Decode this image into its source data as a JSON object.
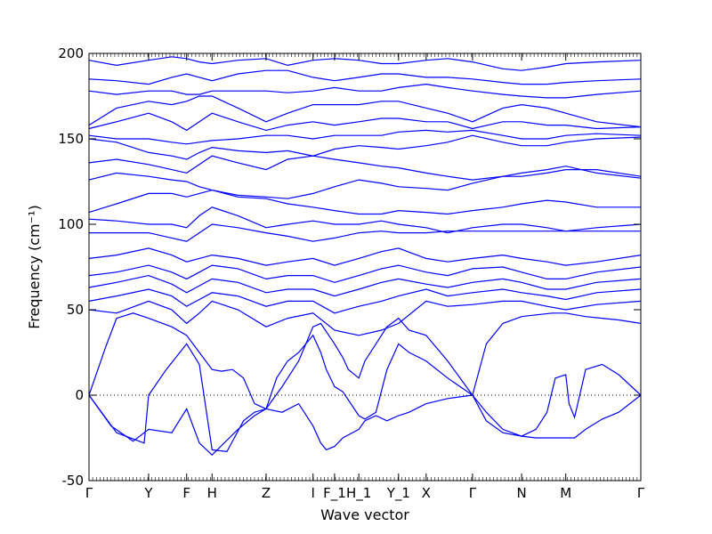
{
  "chart_data": {
    "type": "line",
    "title": "",
    "xlabel": "Wave vector",
    "ylabel": "Frequency (cm⁻¹)",
    "ylim": [
      -50,
      200
    ],
    "yticks": [
      -50,
      0,
      50,
      100,
      150,
      200
    ],
    "grid": false,
    "line_color": "#0000ff",
    "path_points": [
      "Γ",
      "Y",
      "F",
      "H",
      "Z",
      "I",
      "F_1",
      "H_1",
      "Y_1",
      "X",
      "Γ",
      "N",
      "M",
      "Γ"
    ],
    "path_positions": [
      0,
      0.108,
      0.177,
      0.223,
      0.321,
      0.406,
      0.445,
      0.489,
      0.561,
      0.611,
      0.695,
      0.784,
      0.864,
      1.0
    ],
    "reference_line": 0,
    "series": [
      {
        "x": [
          0,
          0.04,
          0.08,
          0.108,
          0.15,
          0.177,
          0.2,
          0.223,
          0.27,
          0.3,
          0.321
        ],
        "y": [
          0,
          -18,
          -27,
          -20,
          -22,
          -8,
          -28,
          -35,
          -20,
          -12,
          -8
        ]
      },
      {
        "x": [
          0,
          0.05,
          0.1,
          0.108,
          0.14,
          0.177,
          0.2,
          0.223,
          0.25,
          0.28,
          0.3,
          0.321
        ],
        "y": [
          0,
          -22,
          -28,
          0,
          15,
          30,
          18,
          -32,
          -33,
          -15,
          -10,
          -8
        ]
      },
      {
        "x": [
          0,
          0.03,
          0.05,
          0.08,
          0.108,
          0.15,
          0.177,
          0.2,
          0.223,
          0.24,
          0.26,
          0.28,
          0.3,
          0.321
        ],
        "y": [
          0,
          28,
          45,
          48,
          45,
          40,
          35,
          25,
          15,
          14,
          15,
          10,
          -5,
          -8
        ]
      },
      {
        "x": [
          0.321,
          0.35,
          0.38,
          0.406,
          0.42,
          0.43,
          0.445,
          0.46,
          0.489,
          0.5,
          0.52,
          0.54,
          0.561,
          0.58,
          0.611,
          0.65,
          0.695
        ],
        "y": [
          -8,
          -10,
          -5,
          -18,
          -28,
          -32,
          -30,
          -25,
          -20,
          -15,
          -12,
          -15,
          -12,
          -10,
          -5,
          -2,
          0
        ]
      },
      {
        "x": [
          0.321,
          0.34,
          0.36,
          0.38,
          0.406,
          0.42,
          0.43,
          0.445,
          0.46,
          0.489,
          0.5,
          0.52,
          0.54,
          0.561,
          0.58,
          0.611,
          0.65,
          0.695
        ],
        "y": [
          -8,
          10,
          20,
          25,
          35,
          25,
          15,
          5,
          2,
          -12,
          -14,
          -10,
          15,
          30,
          25,
          20,
          10,
          0
        ]
      },
      {
        "x": [
          0.321,
          0.35,
          0.38,
          0.406,
          0.42,
          0.445,
          0.46,
          0.47,
          0.489,
          0.5,
          0.52,
          0.54,
          0.561,
          0.58,
          0.611,
          0.65,
          0.695
        ],
        "y": [
          -8,
          5,
          20,
          40,
          42,
          30,
          22,
          15,
          10,
          20,
          30,
          40,
          45,
          38,
          35,
          20,
          0
        ]
      },
      {
        "x": [
          0.695,
          0.72,
          0.75,
          0.784,
          0.81,
          0.83,
          0.864,
          0.88,
          0.9,
          0.93,
          0.96,
          1.0
        ],
        "y": [
          0,
          -10,
          -20,
          -24,
          -25,
          -25,
          -25,
          -25,
          -20,
          -14,
          -10,
          0
        ]
      },
      {
        "x": [
          0.695,
          0.72,
          0.75,
          0.784,
          0.81,
          0.83,
          0.845,
          0.864,
          0.87,
          0.88,
          0.9,
          0.93,
          0.96,
          1.0
        ],
        "y": [
          0,
          -15,
          -22,
          -24,
          -20,
          -10,
          10,
          12,
          -5,
          -13,
          15,
          18,
          12,
          0
        ]
      },
      {
        "x": [
          0.695,
          0.72,
          0.75,
          0.784,
          0.81,
          0.84,
          0.864,
          0.9,
          0.93,
          0.96,
          1.0
        ],
        "y": [
          0,
          30,
          42,
          46,
          47,
          48,
          48,
          46,
          45,
          44,
          42
        ]
      },
      {
        "x": [
          0,
          0.05,
          0.108,
          0.15,
          0.177,
          0.2,
          0.223,
          0.27,
          0.321,
          0.36,
          0.406,
          0.445,
          0.489,
          0.53,
          0.561,
          0.611,
          0.65,
          0.695,
          0.75,
          0.784,
          0.83,
          0.864,
          0.92,
          1.0
        ],
        "y": [
          50,
          48,
          55,
          50,
          42,
          48,
          55,
          50,
          40,
          45,
          48,
          38,
          35,
          38,
          42,
          55,
          52,
          53,
          55,
          55,
          52,
          50,
          53,
          55
        ]
      },
      {
        "x": [
          0,
          0.05,
          0.108,
          0.15,
          0.177,
          0.2,
          0.223,
          0.27,
          0.321,
          0.36,
          0.406,
          0.445,
          0.489,
          0.53,
          0.561,
          0.611,
          0.65,
          0.695,
          0.75,
          0.784,
          0.83,
          0.864,
          0.92,
          1.0
        ],
        "y": [
          55,
          58,
          62,
          58,
          52,
          56,
          60,
          58,
          52,
          55,
          55,
          48,
          52,
          55,
          58,
          62,
          58,
          60,
          62,
          60,
          58,
          56,
          60,
          62
        ]
      },
      {
        "x": [
          0,
          0.05,
          0.108,
          0.15,
          0.177,
          0.2,
          0.223,
          0.27,
          0.321,
          0.36,
          0.406,
          0.445,
          0.489,
          0.53,
          0.561,
          0.611,
          0.65,
          0.695,
          0.75,
          0.784,
          0.83,
          0.864,
          0.92,
          1.0
        ],
        "y": [
          63,
          66,
          70,
          65,
          60,
          64,
          68,
          66,
          60,
          62,
          62,
          58,
          62,
          66,
          68,
          65,
          63,
          66,
          68,
          66,
          62,
          62,
          66,
          68
        ]
      },
      {
        "x": [
          0,
          0.05,
          0.108,
          0.15,
          0.177,
          0.2,
          0.223,
          0.27,
          0.321,
          0.36,
          0.406,
          0.445,
          0.489,
          0.53,
          0.561,
          0.611,
          0.65,
          0.695,
          0.75,
          0.784,
          0.83,
          0.864,
          0.92,
          1.0
        ],
        "y": [
          70,
          72,
          76,
          72,
          68,
          72,
          76,
          74,
          68,
          70,
          70,
          66,
          70,
          74,
          76,
          72,
          70,
          74,
          75,
          72,
          68,
          68,
          72,
          75
        ]
      },
      {
        "x": [
          0,
          0.05,
          0.108,
          0.15,
          0.177,
          0.2,
          0.223,
          0.27,
          0.321,
          0.36,
          0.406,
          0.445,
          0.489,
          0.53,
          0.561,
          0.611,
          0.65,
          0.695,
          0.75,
          0.784,
          0.83,
          0.864,
          0.92,
          1.0
        ],
        "y": [
          80,
          82,
          86,
          82,
          78,
          80,
          82,
          80,
          76,
          78,
          80,
          76,
          80,
          84,
          86,
          80,
          78,
          80,
          82,
          80,
          78,
          76,
          78,
          82
        ]
      },
      {
        "x": [
          0,
          0.05,
          0.108,
          0.15,
          0.177,
          0.2,
          0.223,
          0.27,
          0.321,
          0.36,
          0.406,
          0.445,
          0.489,
          0.53,
          0.561,
          0.611,
          0.65,
          0.695,
          0.75,
          0.784,
          0.83,
          0.864,
          0.92,
          1.0
        ],
        "y": [
          95,
          95,
          95,
          92,
          90,
          95,
          100,
          98,
          95,
          93,
          90,
          92,
          95,
          96,
          95,
          95,
          96,
          96,
          96,
          96,
          96,
          96,
          96,
          96
        ]
      },
      {
        "x": [
          0,
          0.05,
          0.108,
          0.15,
          0.177,
          0.2,
          0.223,
          0.27,
          0.321,
          0.36,
          0.406,
          0.445,
          0.489,
          0.53,
          0.561,
          0.611,
          0.65,
          0.695,
          0.75,
          0.784,
          0.83,
          0.864,
          0.92,
          1.0
        ],
        "y": [
          103,
          102,
          100,
          100,
          98,
          105,
          110,
          105,
          98,
          100,
          102,
          100,
          100,
          102,
          100,
          98,
          95,
          98,
          100,
          100,
          98,
          96,
          98,
          100
        ]
      },
      {
        "x": [
          0,
          0.05,
          0.108,
          0.15,
          0.177,
          0.2,
          0.223,
          0.27,
          0.321,
          0.36,
          0.406,
          0.445,
          0.489,
          0.53,
          0.561,
          0.611,
          0.65,
          0.695,
          0.75,
          0.784,
          0.83,
          0.864,
          0.92,
          1.0
        ],
        "y": [
          107,
          112,
          118,
          118,
          116,
          118,
          120,
          116,
          115,
          112,
          110,
          108,
          106,
          106,
          108,
          107,
          106,
          108,
          110,
          112,
          114,
          113,
          110,
          110
        ]
      },
      {
        "x": [
          0,
          0.05,
          0.108,
          0.15,
          0.177,
          0.2,
          0.223,
          0.27,
          0.321,
          0.36,
          0.406,
          0.445,
          0.489,
          0.53,
          0.561,
          0.611,
          0.65,
          0.695,
          0.75,
          0.784,
          0.83,
          0.864,
          0.92,
          1.0
        ],
        "y": [
          126,
          130,
          128,
          126,
          125,
          122,
          120,
          117,
          116,
          115,
          118,
          122,
          126,
          124,
          122,
          121,
          120,
          124,
          128,
          130,
          132,
          134,
          130,
          127
        ]
      },
      {
        "x": [
          0,
          0.05,
          0.108,
          0.15,
          0.177,
          0.2,
          0.223,
          0.27,
          0.321,
          0.36,
          0.406,
          0.445,
          0.489,
          0.53,
          0.561,
          0.611,
          0.65,
          0.695,
          0.75,
          0.784,
          0.83,
          0.864,
          0.92,
          1.0
        ],
        "y": [
          136,
          138,
          135,
          132,
          130,
          135,
          140,
          136,
          132,
          138,
          140,
          138,
          136,
          134,
          133,
          130,
          128,
          126,
          128,
          128,
          130,
          132,
          132,
          128
        ]
      },
      {
        "x": [
          0,
          0.05,
          0.108,
          0.15,
          0.177,
          0.2,
          0.223,
          0.27,
          0.321,
          0.36,
          0.406,
          0.445,
          0.489,
          0.53,
          0.561,
          0.611,
          0.65,
          0.695,
          0.75,
          0.784,
          0.83,
          0.864,
          0.92,
          1.0
        ],
        "y": [
          150,
          148,
          142,
          140,
          138,
          142,
          145,
          143,
          142,
          143,
          140,
          144,
          146,
          145,
          144,
          146,
          148,
          152,
          148,
          146,
          146,
          148,
          150,
          151
        ]
      },
      {
        "x": [
          0,
          0.05,
          0.108,
          0.15,
          0.177,
          0.2,
          0.223,
          0.27,
          0.321,
          0.36,
          0.406,
          0.445,
          0.489,
          0.53,
          0.561,
          0.611,
          0.65,
          0.695,
          0.75,
          0.784,
          0.83,
          0.864,
          0.92,
          1.0
        ],
        "y": [
          152,
          150,
          150,
          148,
          147,
          148,
          149,
          150,
          152,
          152,
          150,
          152,
          152,
          152,
          154,
          155,
          154,
          155,
          152,
          150,
          150,
          152,
          153,
          152
        ]
      },
      {
        "x": [
          0,
          0.05,
          0.108,
          0.15,
          0.177,
          0.2,
          0.223,
          0.27,
          0.321,
          0.36,
          0.406,
          0.445,
          0.489,
          0.53,
          0.561,
          0.611,
          0.65,
          0.695,
          0.75,
          0.784,
          0.83,
          0.864,
          0.92,
          1.0
        ],
        "y": [
          156,
          160,
          165,
          160,
          155,
          160,
          165,
          160,
          155,
          158,
          160,
          158,
          160,
          162,
          162,
          160,
          160,
          156,
          160,
          160,
          158,
          158,
          156,
          157
        ]
      },
      {
        "x": [
          0,
          0.05,
          0.108,
          0.15,
          0.177,
          0.2,
          0.223,
          0.27,
          0.321,
          0.36,
          0.406,
          0.445,
          0.489,
          0.53,
          0.561,
          0.611,
          0.65,
          0.695,
          0.75,
          0.784,
          0.83,
          0.864,
          0.92,
          1.0
        ],
        "y": [
          158,
          168,
          172,
          170,
          172,
          175,
          175,
          168,
          160,
          165,
          170,
          170,
          170,
          172,
          172,
          168,
          165,
          160,
          168,
          170,
          168,
          165,
          160,
          157
        ]
      },
      {
        "x": [
          0,
          0.05,
          0.108,
          0.15,
          0.177,
          0.2,
          0.223,
          0.27,
          0.321,
          0.36,
          0.406,
          0.445,
          0.489,
          0.53,
          0.561,
          0.611,
          0.65,
          0.695,
          0.75,
          0.784,
          0.83,
          0.864,
          0.92,
          1.0
        ],
        "y": [
          178,
          176,
          178,
          178,
          176,
          176,
          178,
          178,
          178,
          177,
          178,
          180,
          178,
          178,
          180,
          182,
          180,
          178,
          176,
          175,
          174,
          174,
          176,
          178
        ]
      },
      {
        "x": [
          0,
          0.05,
          0.108,
          0.15,
          0.177,
          0.2,
          0.223,
          0.27,
          0.321,
          0.36,
          0.406,
          0.445,
          0.489,
          0.53,
          0.561,
          0.611,
          0.65,
          0.695,
          0.75,
          0.784,
          0.83,
          0.864,
          0.92,
          1.0
        ],
        "y": [
          185,
          184,
          182,
          186,
          188,
          186,
          184,
          188,
          190,
          190,
          186,
          184,
          186,
          188,
          188,
          186,
          186,
          185,
          183,
          182,
          182,
          183,
          184,
          185
        ]
      },
      {
        "x": [
          0,
          0.05,
          0.108,
          0.15,
          0.177,
          0.2,
          0.223,
          0.27,
          0.321,
          0.36,
          0.406,
          0.445,
          0.489,
          0.53,
          0.561,
          0.611,
          0.65,
          0.695,
          0.75,
          0.784,
          0.83,
          0.864,
          0.92,
          1.0
        ],
        "y": [
          196,
          193,
          196,
          198,
          197,
          195,
          194,
          196,
          197,
          193,
          196,
          197,
          196,
          194,
          194,
          196,
          197,
          195,
          191,
          190,
          192,
          194,
          195,
          196
        ]
      }
    ]
  }
}
